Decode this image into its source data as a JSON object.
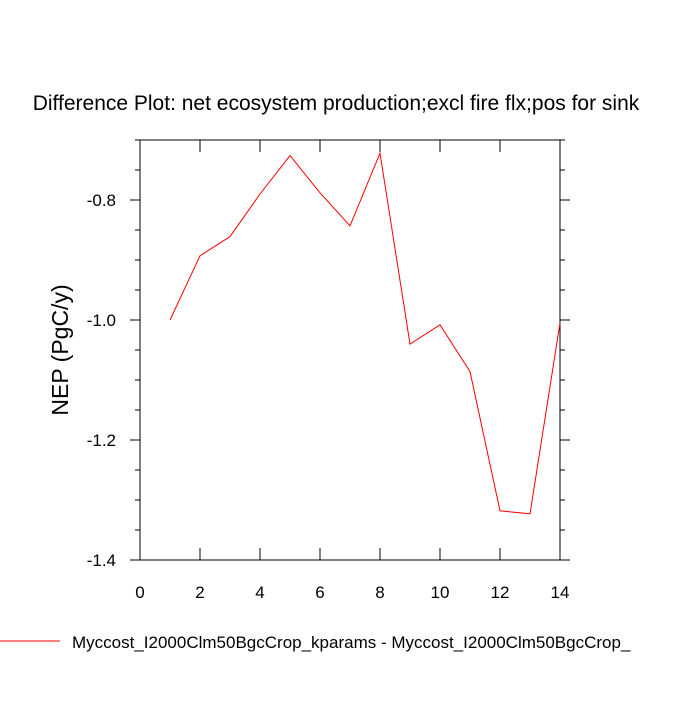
{
  "chart_data": {
    "type": "line",
    "title": "Difference Plot: net ecosystem production;excl fire flx;pos for sink",
    "xlabel": "",
    "ylabel": "NEP  (PgC/y)",
    "xlim": [
      0,
      14
    ],
    "ylim": [
      -1.4,
      -0.7
    ],
    "x_ticks": [
      0,
      2,
      4,
      6,
      8,
      10,
      12,
      14
    ],
    "x_tick_labels": [
      "0",
      "2",
      "4",
      "6",
      "8",
      "10",
      "12",
      "14"
    ],
    "y_ticks": [
      -1.4,
      -1.2,
      -1.0,
      -0.8
    ],
    "y_tick_labels": [
      "-1.4",
      "-1.2",
      "-1.0",
      "-0.8"
    ],
    "grid": false,
    "legend_placement": "bottom-left",
    "colors": {
      "series": "#ff0000",
      "axis": "#000000"
    },
    "series": [
      {
        "name": "Myccost_I2000Clm50BgcCrop_kparams - Myccost_I2000Clm50BgcCrop_",
        "x": [
          1,
          2,
          3,
          4,
          5,
          6,
          7,
          8,
          9,
          10,
          11,
          12,
          13,
          14
        ],
        "values": [
          -1.0,
          -0.893,
          -0.861,
          -0.79,
          -0.726,
          -0.788,
          -0.843,
          -0.722,
          -1.04,
          -1.008,
          -1.086,
          -1.318,
          -1.323,
          -1.005
        ]
      }
    ]
  }
}
